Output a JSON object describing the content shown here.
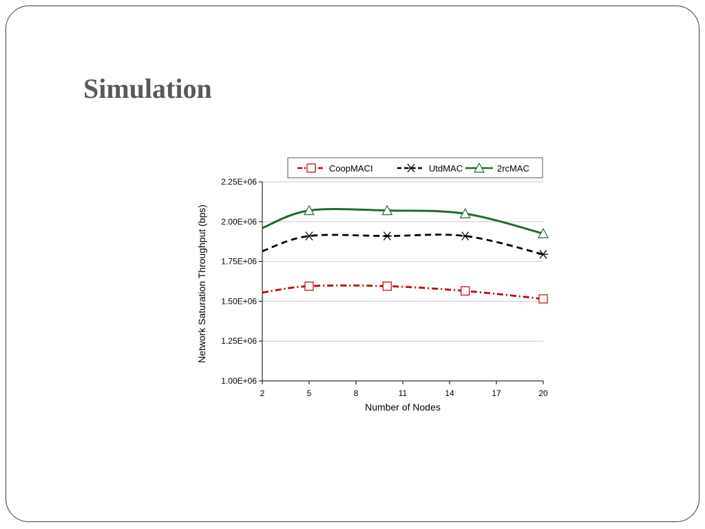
{
  "slide": {
    "title": "Simulation"
  },
  "colors": {
    "coop": "#c00000",
    "utd": "#000000",
    "rc": "#1e6b2d",
    "grid": "#c8c8c8",
    "border": "#3a3a3a",
    "title": "#595959"
  },
  "chart_data": {
    "type": "line",
    "title": "",
    "xlabel": "Number of Nodes",
    "ylabel": "Network Saturation Throughput (bps)",
    "xlim": [
      2,
      20
    ],
    "ylim": [
      1000000,
      2250000
    ],
    "x_ticks": [
      2,
      5,
      8,
      11,
      14,
      17,
      20
    ],
    "y_ticks": [
      1000000,
      1250000,
      1500000,
      1750000,
      2000000,
      2250000
    ],
    "x_tick_labels": [
      "2",
      "5",
      "8",
      "11",
      "14",
      "17",
      "20"
    ],
    "y_tick_labels": [
      "1.00E+06",
      "1.25E+06",
      "1.50E+06",
      "1.75E+06",
      "2.00E+06",
      "2.25E+06"
    ],
    "grid": true,
    "legend_position": "top",
    "series": [
      {
        "name": "CoopMACI",
        "color": "#c00000",
        "line": "dash-dot",
        "marker": "square",
        "x": [
          2,
          5,
          10,
          15,
          20
        ],
        "y": [
          1555000,
          1595000,
          1595000,
          1565000,
          1515000
        ]
      },
      {
        "name": "UtdMAC",
        "color": "#000000",
        "line": "dashed",
        "marker": "asterisk",
        "x": [
          2,
          5,
          10,
          15,
          20
        ],
        "y": [
          1815000,
          1910000,
          1910000,
          1910000,
          1795000
        ]
      },
      {
        "name": "2rcMAC",
        "color": "#1e6b2d",
        "line": "solid",
        "marker": "triangle",
        "x": [
          2,
          5,
          10,
          15,
          20
        ],
        "y": [
          1960000,
          2070000,
          2070000,
          2050000,
          1925000
        ]
      }
    ]
  }
}
